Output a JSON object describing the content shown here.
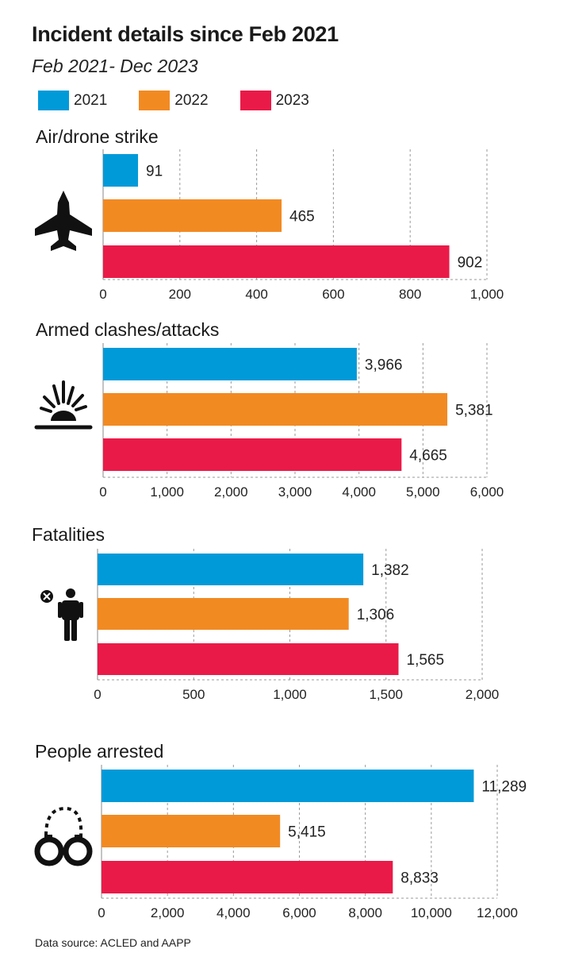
{
  "title": "Incident details since Feb 2021",
  "subtitle": "Feb 2021- Dec 2023",
  "legend": [
    {
      "label": "2021",
      "color": "#009ad9"
    },
    {
      "label": "2022",
      "color": "#f28a22"
    },
    {
      "label": "2023",
      "color": "#ea1a48"
    }
  ],
  "source": "Data source: ACLED and AAPP",
  "chart_data": [
    {
      "type": "bar",
      "orientation": "horizontal",
      "title": "Air/drone strike",
      "icon": "fighter-jet-icon",
      "categories": [
        "2021",
        "2022",
        "2023"
      ],
      "values": [
        91,
        465,
        902
      ],
      "value_labels": [
        "91",
        "465",
        "902"
      ],
      "xlim": [
        0,
        1000
      ],
      "ticks": [
        0,
        200,
        400,
        600,
        800,
        1000
      ],
      "tick_labels": [
        "0",
        "200",
        "400",
        "600",
        "800",
        "1,000"
      ]
    },
    {
      "type": "bar",
      "orientation": "horizontal",
      "title": "Armed clashes/attacks",
      "icon": "explosion-icon",
      "categories": [
        "2021",
        "2022",
        "2023"
      ],
      "values": [
        3966,
        5381,
        4665
      ],
      "value_labels": [
        "3,966",
        "5,381",
        "4,665"
      ],
      "xlim": [
        0,
        6000
      ],
      "ticks": [
        0,
        1000,
        2000,
        3000,
        4000,
        5000,
        6000
      ],
      "tick_labels": [
        "0",
        "1,000",
        "2,000",
        "3,000",
        "4,000",
        "5,000",
        "6,000"
      ]
    },
    {
      "type": "bar",
      "orientation": "horizontal",
      "title": "Fatalities",
      "icon": "fatality-person-icon",
      "categories": [
        "2021",
        "2022",
        "2023"
      ],
      "values": [
        1382,
        1306,
        1565
      ],
      "value_labels": [
        "1,382",
        "1,306",
        "1,565"
      ],
      "xlim": [
        0,
        2000
      ],
      "ticks": [
        0,
        500,
        1000,
        1500,
        2000
      ],
      "tick_labels": [
        "0",
        "500",
        "1,000",
        "1,500",
        "2,000"
      ]
    },
    {
      "type": "bar",
      "orientation": "horizontal",
      "title": "People arrested",
      "icon": "handcuffs-icon",
      "categories": [
        "2021",
        "2022",
        "2023"
      ],
      "values": [
        11289,
        5415,
        8833
      ],
      "value_labels": [
        "11,289",
        "5,415",
        "8,833"
      ],
      "xlim": [
        0,
        12000
      ],
      "ticks": [
        0,
        2000,
        4000,
        6000,
        8000,
        10000,
        12000
      ],
      "tick_labels": [
        "0",
        "2,000",
        "4,000",
        "6,000",
        "8,000",
        "10,000",
        "12,000"
      ]
    }
  ]
}
